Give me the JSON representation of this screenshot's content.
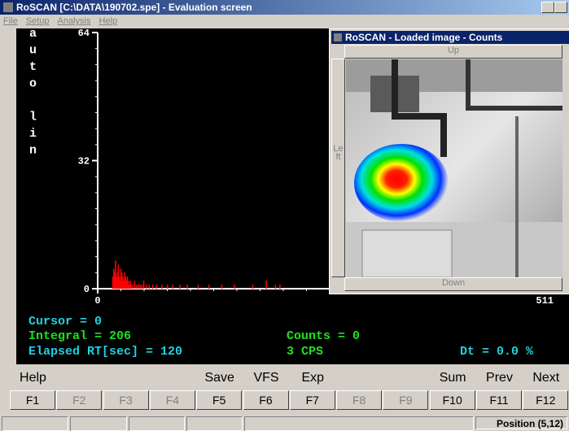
{
  "window": {
    "title": "RoSCAN [C:\\DATA\\190702.spe] - Evaluation screen",
    "menu": [
      "File",
      "Setup",
      "Analysis",
      "Help"
    ]
  },
  "spectrum": {
    "scale_mode": "auto lin",
    "xlim": [
      0,
      511
    ],
    "ylim": [
      0,
      64
    ],
    "xticks": [
      0,
      511
    ],
    "yticks": [
      0,
      32,
      64
    ],
    "color": "#ff0000",
    "channels": [
      16,
      17,
      18,
      19,
      20,
      21,
      22,
      23,
      24,
      25,
      26,
      27,
      28,
      29,
      30,
      31,
      32,
      33,
      34,
      35,
      36,
      38,
      40,
      42,
      44,
      46,
      48,
      50,
      53,
      56,
      60,
      64,
      70,
      76,
      82,
      90,
      98,
      110,
      122,
      136,
      150,
      170,
      185,
      195,
      200
    ],
    "counts": [
      3,
      5,
      4,
      7,
      3,
      4,
      6,
      3,
      2,
      5,
      4,
      3,
      2,
      4,
      3,
      2,
      3,
      2,
      1,
      2,
      1,
      1,
      2,
      1,
      1,
      1,
      1,
      2,
      1,
      1,
      1,
      1,
      1,
      1,
      1,
      1,
      1,
      1,
      1,
      1,
      1,
      1,
      2,
      1,
      1
    ]
  },
  "readout": {
    "cursor": "Cursor = 0",
    "integral": "Integral = 206",
    "elapsed": "Elapsed RT[sec] = 120",
    "counts": "Counts = 0",
    "cps": "3 CPS",
    "dt": "Dt = 0.0 %"
  },
  "fkeys": [
    {
      "key": "F1",
      "caption": "Help",
      "enabled": true
    },
    {
      "key": "F2",
      "enabled": false
    },
    {
      "key": "F3",
      "enabled": false
    },
    {
      "key": "F4",
      "enabled": false
    },
    {
      "key": "F5",
      "caption": "Save",
      "enabled": true
    },
    {
      "key": "F6",
      "caption": "VFS",
      "enabled": true
    },
    {
      "key": "F7",
      "caption": "Exp",
      "enabled": true
    },
    {
      "key": "F8",
      "enabled": false
    },
    {
      "key": "F9",
      "enabled": false
    },
    {
      "key": "F10",
      "caption": "Sum",
      "enabled": true
    },
    {
      "key": "F11",
      "caption": "Prev",
      "enabled": true
    },
    {
      "key": "F12",
      "caption": "Next",
      "enabled": true
    }
  ],
  "overlay": {
    "title": "RoSCAN - Loaded image - Counts",
    "up": "Up",
    "down": "Down",
    "left": "Left"
  },
  "status": {
    "position": "Position (5,12)"
  }
}
